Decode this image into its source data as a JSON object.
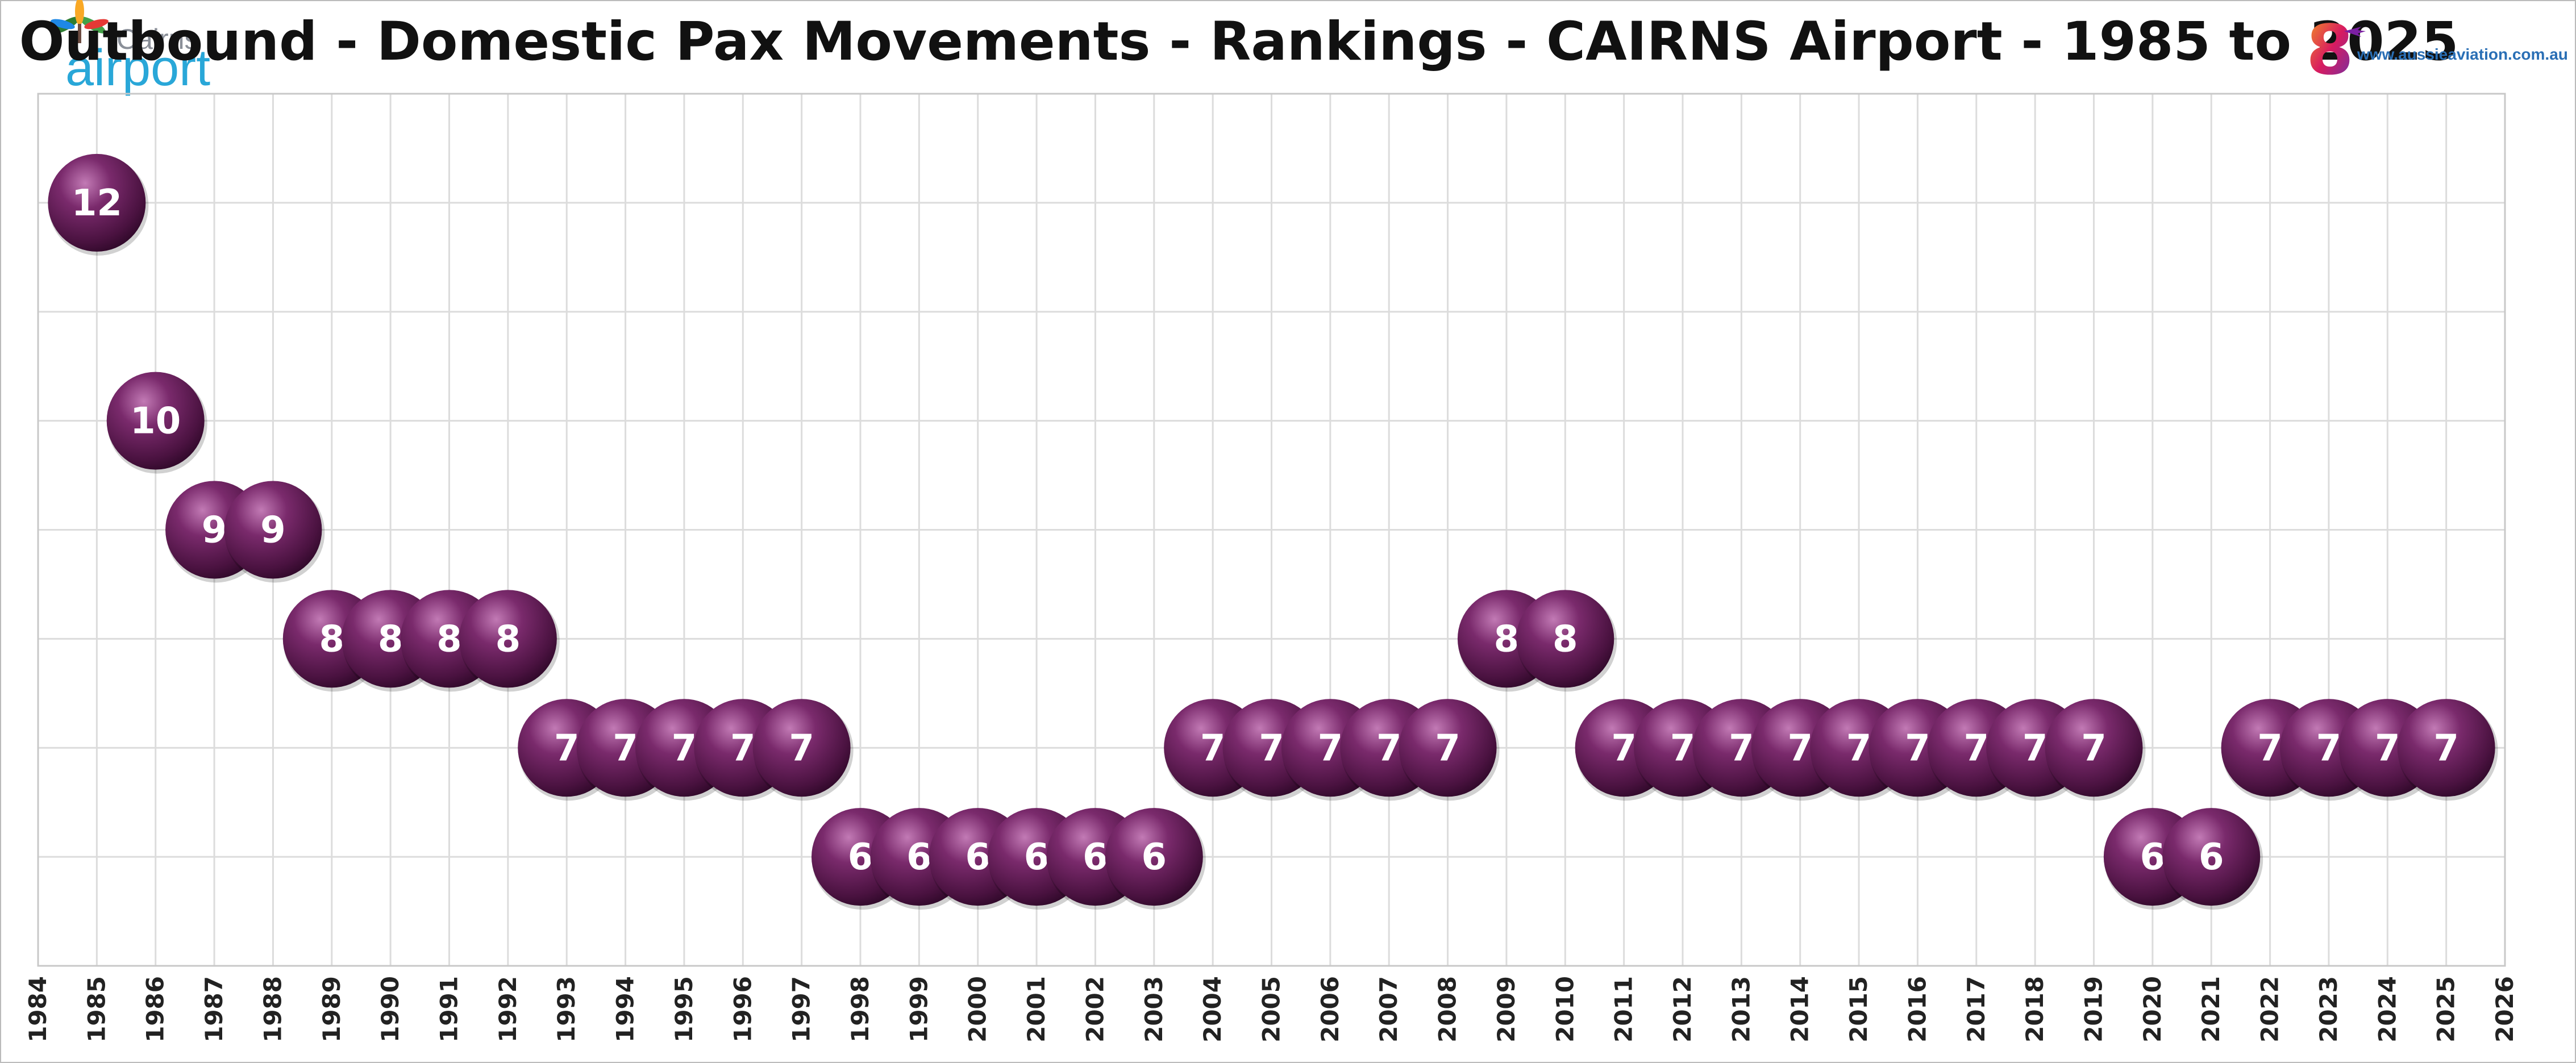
{
  "title": "Outbound - Domestic Pax Movements - Rankings - CAIRNS Airport - 1985 to 2025",
  "logo_left": {
    "line1": "Cairns",
    "line2": "airport"
  },
  "logo_right": {
    "glyph": "8",
    "url": "www.aussieaviation.com.au"
  },
  "colors": {
    "bubble": "#5a1a4e",
    "bubble_highlight": "#b06aa3",
    "grid": "#dcdcdc",
    "border": "#bbbbbb"
  },
  "chart_data": {
    "type": "scatter",
    "title": "Outbound - Domestic Pax Movements - Rankings - CAIRNS Airport - 1985 to 2025",
    "xlabel": "",
    "ylabel": "",
    "xlim": [
      1984,
      2026
    ],
    "ylim": [
      5,
      13
    ],
    "y_inverted": true,
    "grid": true,
    "x_ticks": [
      "1984",
      "1985",
      "1986",
      "1987",
      "1988",
      "1989",
      "1990",
      "1991",
      "1992",
      "1993",
      "1994",
      "1995",
      "1996",
      "1997",
      "1998",
      "1999",
      "2000",
      "2001",
      "2002",
      "2003",
      "2004",
      "2005",
      "2006",
      "2007",
      "2008",
      "2009",
      "2010",
      "2011",
      "2012",
      "2013",
      "2014",
      "2015",
      "2016",
      "2017",
      "2018",
      "2019",
      "2020",
      "2021",
      "2022",
      "2023",
      "2024",
      "2025",
      "2026"
    ],
    "points": [
      {
        "x": 1985,
        "y": 12
      },
      {
        "x": 1986,
        "y": 10
      },
      {
        "x": 1987,
        "y": 9
      },
      {
        "x": 1988,
        "y": 9
      },
      {
        "x": 1989,
        "y": 8
      },
      {
        "x": 1990,
        "y": 8
      },
      {
        "x": 1991,
        "y": 8
      },
      {
        "x": 1992,
        "y": 8
      },
      {
        "x": 1993,
        "y": 7
      },
      {
        "x": 1994,
        "y": 7
      },
      {
        "x": 1995,
        "y": 7
      },
      {
        "x": 1996,
        "y": 7
      },
      {
        "x": 1997,
        "y": 7
      },
      {
        "x": 1998,
        "y": 6
      },
      {
        "x": 1999,
        "y": 6
      },
      {
        "x": 2000,
        "y": 6
      },
      {
        "x": 2001,
        "y": 6
      },
      {
        "x": 2002,
        "y": 6
      },
      {
        "x": 2003,
        "y": 6
      },
      {
        "x": 2004,
        "y": 7
      },
      {
        "x": 2005,
        "y": 7
      },
      {
        "x": 2006,
        "y": 7
      },
      {
        "x": 2007,
        "y": 7
      },
      {
        "x": 2008,
        "y": 7
      },
      {
        "x": 2009,
        "y": 8
      },
      {
        "x": 2010,
        "y": 8
      },
      {
        "x": 2011,
        "y": 7
      },
      {
        "x": 2012,
        "y": 7
      },
      {
        "x": 2013,
        "y": 7
      },
      {
        "x": 2014,
        "y": 7
      },
      {
        "x": 2015,
        "y": 7
      },
      {
        "x": 2016,
        "y": 7
      },
      {
        "x": 2017,
        "y": 7
      },
      {
        "x": 2018,
        "y": 7
      },
      {
        "x": 2019,
        "y": 7
      },
      {
        "x": 2020,
        "y": 6
      },
      {
        "x": 2021,
        "y": 6
      },
      {
        "x": 2022,
        "y": 7
      },
      {
        "x": 2023,
        "y": 7
      },
      {
        "x": 2024,
        "y": 7
      },
      {
        "x": 2025,
        "y": 7
      }
    ]
  }
}
